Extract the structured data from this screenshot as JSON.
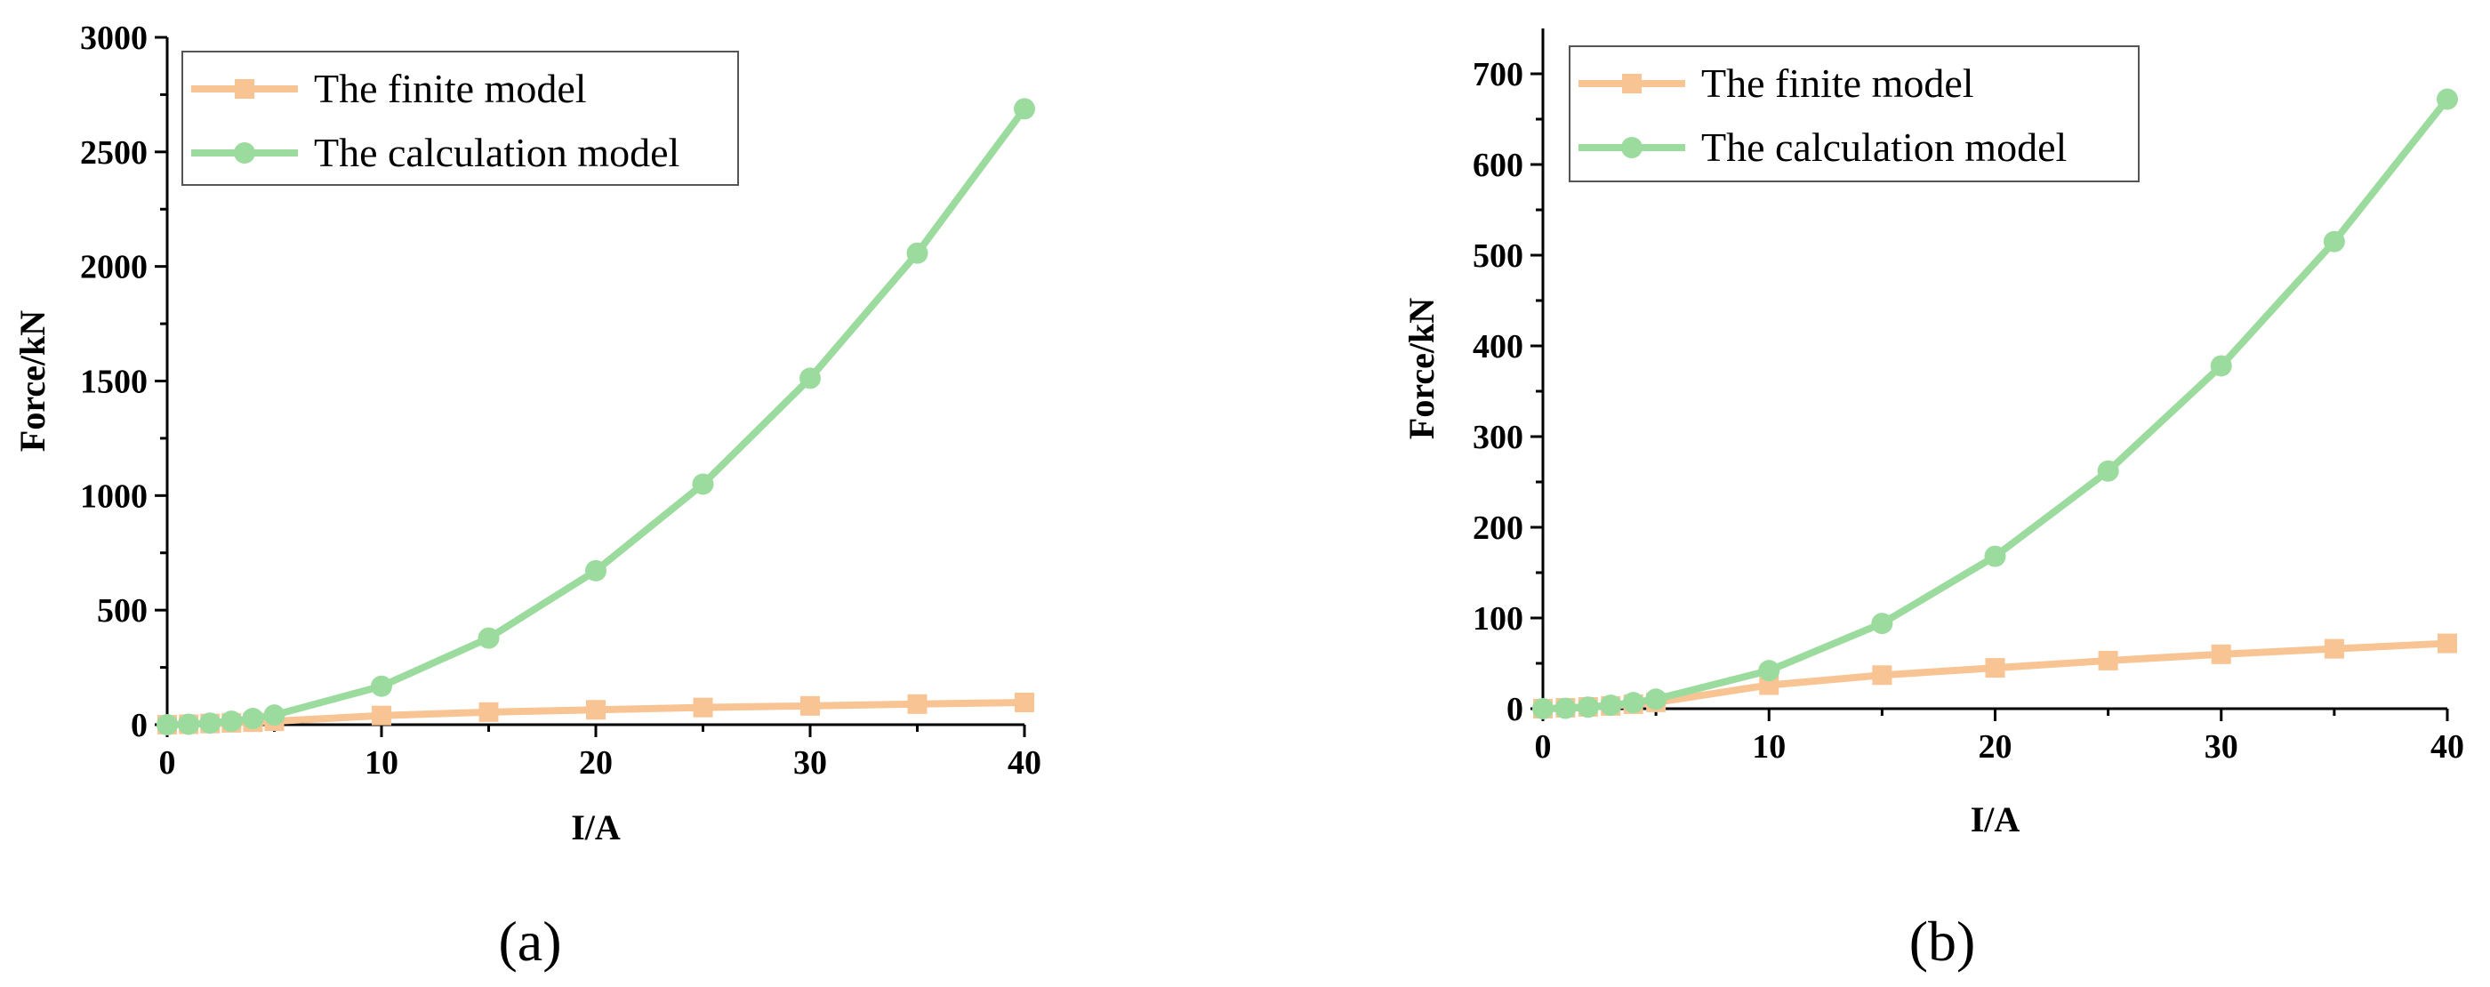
{
  "chart_data": [
    {
      "type": "line",
      "panel_label": "(a)",
      "xlabel": "I/A",
      "ylabel": "Force/kN",
      "xlim": [
        0,
        40
      ],
      "ylim": [
        0,
        3000
      ],
      "xticks": [
        0,
        10,
        20,
        30,
        40
      ],
      "yticks": [
        0,
        500,
        1000,
        1500,
        2000,
        2500,
        3000
      ],
      "legend_position": "top-left",
      "series": [
        {
          "name": "The finite model",
          "color": "#F8C494",
          "marker": "square",
          "x": [
            0,
            1,
            2,
            3,
            4,
            5,
            10,
            15,
            20,
            25,
            30,
            35,
            40
          ],
          "y": [
            0,
            2,
            5,
            8,
            11,
            15,
            40,
            55,
            65,
            75,
            82,
            90,
            97
          ]
        },
        {
          "name": "The calculation model",
          "color": "#9CDB9E",
          "marker": "circle",
          "x": [
            0,
            1,
            2,
            3,
            4,
            5,
            10,
            15,
            20,
            25,
            30,
            35,
            40
          ],
          "y": [
            0,
            2,
            7,
            15,
            27,
            42,
            168,
            378,
            672,
            1050,
            1512,
            2058,
            2688
          ]
        }
      ]
    },
    {
      "type": "line",
      "panel_label": "(b)",
      "xlabel": "I/A",
      "ylabel": "Force/kN",
      "xlim": [
        0,
        40
      ],
      "ylim": [
        0,
        750
      ],
      "xticks": [
        0,
        10,
        20,
        30,
        40
      ],
      "yticks": [
        0,
        100,
        200,
        300,
        400,
        500,
        600,
        700
      ],
      "legend_position": "top-left",
      "series": [
        {
          "name": "The finite model",
          "color": "#F8C494",
          "marker": "square",
          "x": [
            0,
            1,
            2,
            3,
            4,
            5,
            10,
            15,
            20,
            25,
            30,
            35,
            40
          ],
          "y": [
            0,
            1,
            2,
            3,
            5,
            7,
            26,
            37,
            45,
            53,
            60,
            66,
            72
          ]
        },
        {
          "name": "The calculation model",
          "color": "#9CDB9E",
          "marker": "circle",
          "x": [
            0,
            1,
            2,
            3,
            4,
            5,
            10,
            15,
            20,
            25,
            30,
            35,
            40
          ],
          "y": [
            0,
            0.4,
            1.7,
            3.8,
            6.7,
            10.5,
            42,
            94,
            168,
            262,
            378,
            515,
            672
          ]
        }
      ]
    }
  ]
}
